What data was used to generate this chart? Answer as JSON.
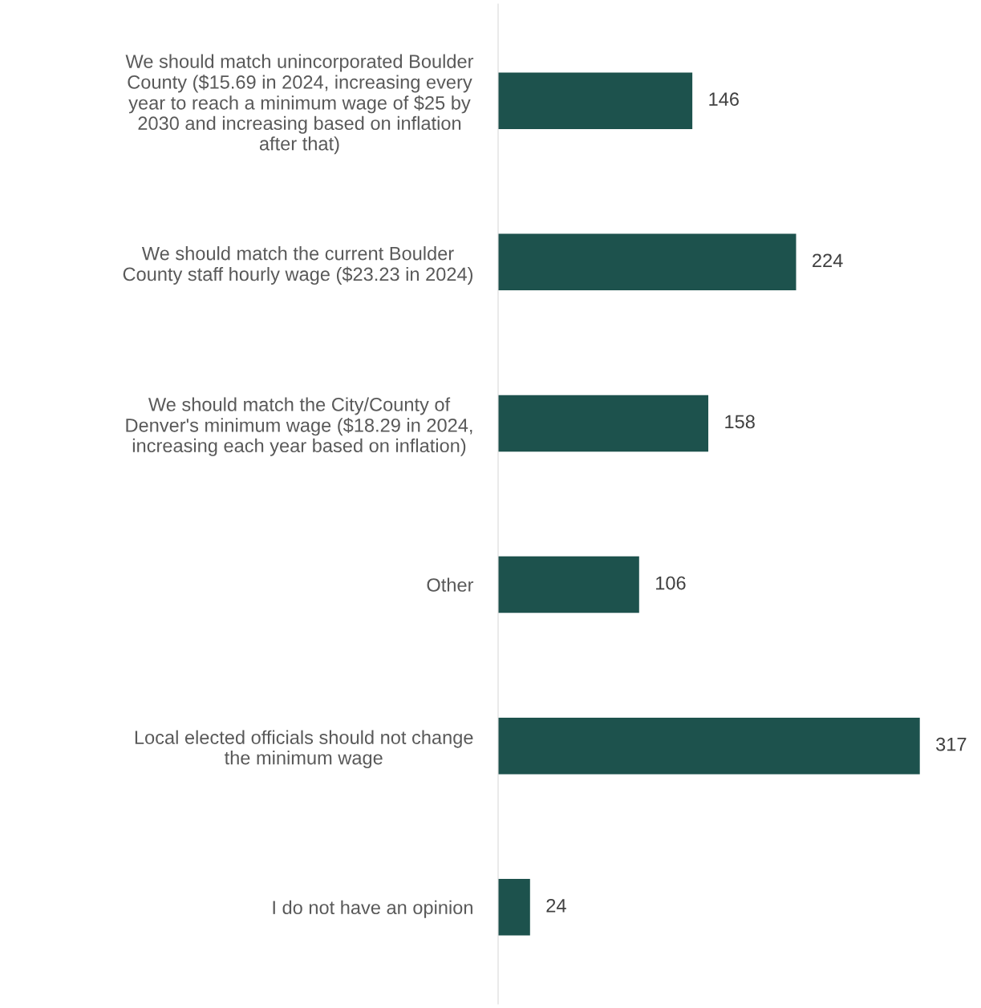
{
  "chart_data": {
    "type": "bar",
    "orientation": "horizontal",
    "categories": [
      "We should match unincorporated Boulder\nCounty ($15.69 in 2024, increasing every\nyear to reach a minimum wage of $25 by\n2030 and increasing based on inflation\nafter that)",
      "We should match the current Boulder\nCounty staff hourly wage ($23.23 in 2024)",
      "We should match the City/County of\nDenver's minimum wage ($18.29 in 2024,\nincreasing each year based on inflation)",
      "Other",
      "Local elected officials should not change\nthe minimum wage",
      "I do not have an opinion"
    ],
    "values": [
      146,
      224,
      158,
      106,
      317,
      24
    ],
    "color": "#1d524d",
    "data_labels": true,
    "grid": false,
    "legend": false
  }
}
